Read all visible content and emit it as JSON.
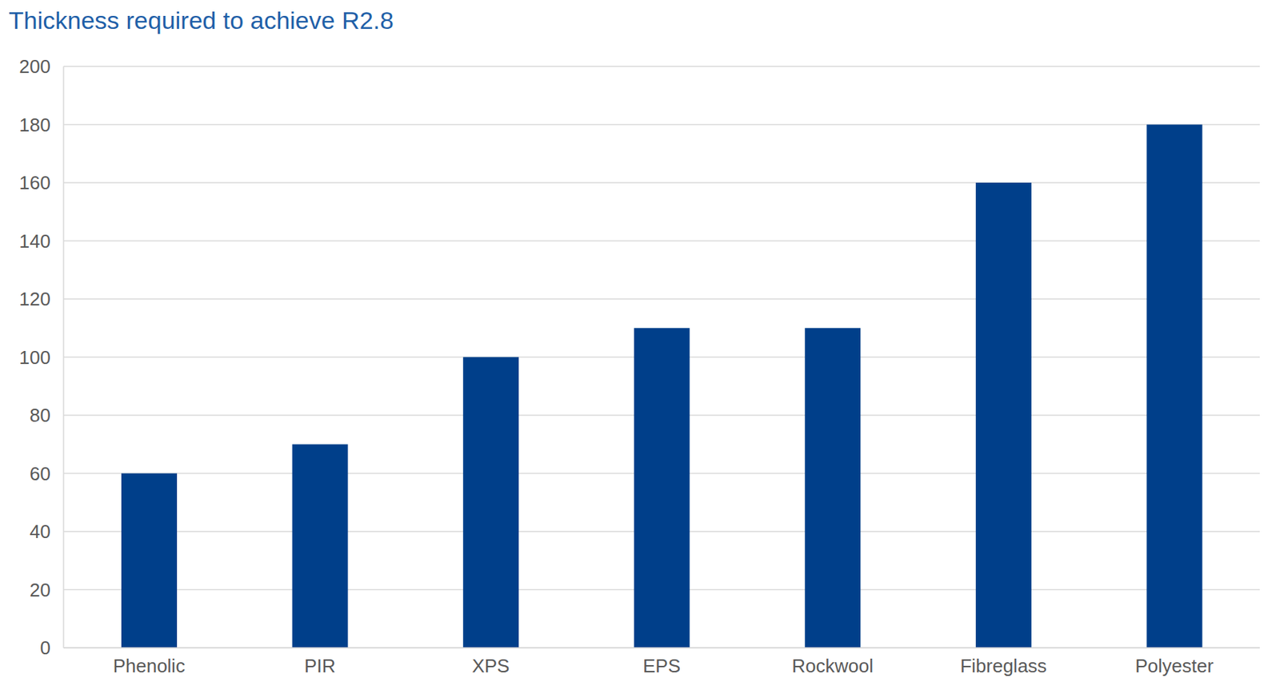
{
  "chart_data": {
    "type": "bar",
    "title": "Thickness required to achieve R2.8",
    "categories": [
      "Phenolic",
      "PIR",
      "XPS",
      "EPS",
      "Rockwool",
      "Fibreglass",
      "Polyester"
    ],
    "values": [
      60,
      70,
      100,
      110,
      110,
      160,
      180
    ],
    "color": "#003f8a",
    "ylim": [
      0,
      200
    ],
    "yticks": [
      0,
      20,
      40,
      60,
      80,
      100,
      120,
      140,
      160,
      180,
      200
    ],
    "grid": true
  }
}
